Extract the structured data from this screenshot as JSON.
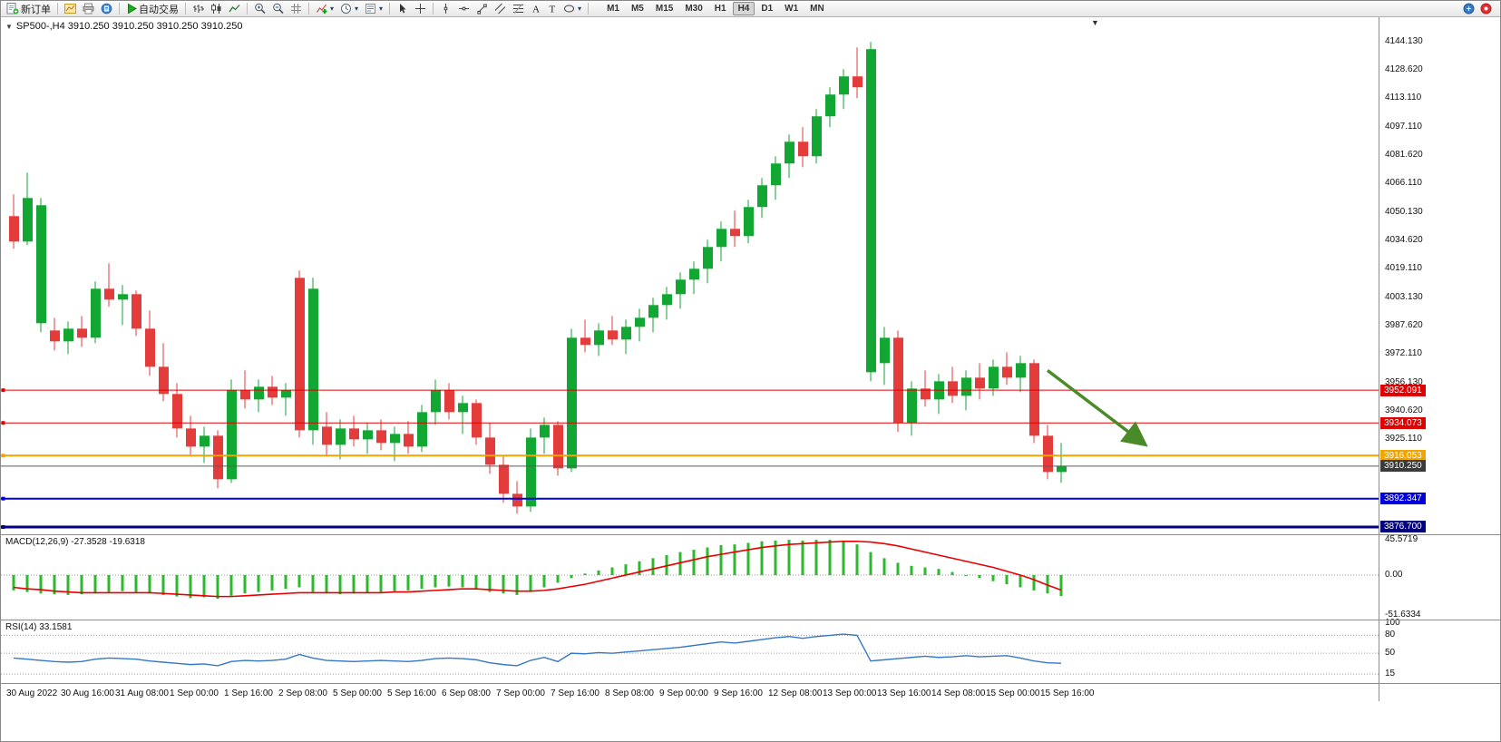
{
  "toolbar": {
    "groups": [
      [
        {
          "name": "new-order-button",
          "icon": "new-order",
          "label": "新订单"
        }
      ],
      [
        {
          "name": "chart-window-button",
          "icon": "chart-window"
        },
        {
          "name": "print-button",
          "icon": "printer"
        },
        {
          "name": "preview-button",
          "icon": "preview"
        }
      ],
      [
        {
          "name": "autotrading-button",
          "icon": "play",
          "label": "自动交易"
        }
      ],
      [
        {
          "name": "bar-chart-button",
          "icon": "bars"
        },
        {
          "name": "candlestick-chart-button",
          "icon": "candles"
        },
        {
          "name": "line-chart-button",
          "icon": "linechart"
        }
      ],
      [
        {
          "name": "zoom-in-button",
          "icon": "zoom-in"
        },
        {
          "name": "zoom-out-button",
          "icon": "zoom-out"
        },
        {
          "name": "tile-windows-button",
          "icon": "grid"
        }
      ],
      [
        {
          "name": "indicators-button",
          "icon": "indicator-add",
          "dropdown": true
        },
        {
          "name": "periods-button",
          "icon": "clock",
          "dropdown": true
        },
        {
          "name": "templates-button",
          "icon": "template",
          "dropdown": true
        }
      ],
      [
        {
          "name": "cursor-button",
          "icon": "cursor"
        },
        {
          "name": "crosshair-button",
          "icon": "crosshair"
        }
      ],
      [
        {
          "name": "vertical-line-button",
          "icon": "vline"
        },
        {
          "name": "horizontal-line-button",
          "icon": "hline"
        },
        {
          "name": "trendline-button",
          "icon": "trendline"
        },
        {
          "name": "channel-button",
          "icon": "channel"
        },
        {
          "name": "fibonacci-button",
          "icon": "fibonacci"
        },
        {
          "name": "text-button",
          "icon": "text"
        },
        {
          "name": "label-button",
          "icon": "label"
        },
        {
          "name": "shapes-button",
          "icon": "shapes",
          "dropdown": true
        }
      ]
    ],
    "timeframes": {
      "items": [
        "M1",
        "M5",
        "M15",
        "M30",
        "H1",
        "H4",
        "D1",
        "W1",
        "MN"
      ],
      "active": "H4"
    },
    "right_icons": [
      {
        "name": "community-button",
        "icon": "blue-badge"
      },
      {
        "name": "alerts-button",
        "icon": "red-badge"
      }
    ]
  },
  "chart_data": {
    "type": "candlestick",
    "symbol": "SP500-",
    "timeframe": "H4",
    "header": "SP500-,H4 3910.250 3910.250 3910.250 3910.250",
    "price_axis": {
      "range": [
        3872.7,
        4157.6
      ],
      "labels": [
        "4144.130",
        "4128.620",
        "4113.110",
        "4097.110",
        "4081.620",
        "4066.110",
        "4050.130",
        "4034.620",
        "4019.110",
        "4003.130",
        "3987.620",
        "3972.110",
        "3956.130",
        "3940.620",
        "3925.110"
      ]
    },
    "candles": [
      [
        4048,
        4060,
        4030,
        4034
      ],
      [
        4034,
        4072,
        4032,
        4058
      ],
      [
        3989,
        4058,
        3984,
        4054
      ],
      [
        3985,
        3992,
        3974,
        3979
      ],
      [
        3979,
        3990,
        3972,
        3986
      ],
      [
        3986,
        3993,
        3976,
        3981
      ],
      [
        3981,
        4012,
        3978,
        4008
      ],
      [
        4008,
        4022,
        3998,
        4002
      ],
      [
        4002,
        4010,
        3988,
        4005
      ],
      [
        4005,
        4007,
        3982,
        3986
      ],
      [
        3986,
        3996,
        3960,
        3965
      ],
      [
        3965,
        3978,
        3946,
        3950
      ],
      [
        3950,
        3956,
        3926,
        3931
      ],
      [
        3931,
        3938,
        3916,
        3921
      ],
      [
        3921,
        3932,
        3912,
        3927
      ],
      [
        3927,
        3930,
        3898,
        3903
      ],
      [
        3903,
        3958,
        3901,
        3952
      ],
      [
        3952,
        3963,
        3942,
        3947
      ],
      [
        3947,
        3958,
        3940,
        3954
      ],
      [
        3954,
        3960,
        3944,
        3948
      ],
      [
        3948,
        3956,
        3938,
        3952
      ],
      [
        4014,
        4018,
        3926,
        3930
      ],
      [
        3930,
        4014,
        3922,
        4008
      ],
      [
        3932,
        3940,
        3916,
        3922
      ],
      [
        3922,
        3936,
        3914,
        3931
      ],
      [
        3931,
        3938,
        3921,
        3925
      ],
      [
        3925,
        3934,
        3917,
        3930
      ],
      [
        3930,
        3936,
        3919,
        3923
      ],
      [
        3923,
        3932,
        3913,
        3928
      ],
      [
        3928,
        3935,
        3917,
        3921
      ],
      [
        3921,
        3944,
        3918,
        3940
      ],
      [
        3940,
        3958,
        3933,
        3952
      ],
      [
        3952,
        3956,
        3936,
        3940
      ],
      [
        3940,
        3949,
        3928,
        3945
      ],
      [
        3945,
        3947,
        3922,
        3926
      ],
      [
        3926,
        3934,
        3906,
        3911
      ],
      [
        3911,
        3916,
        3890,
        3895
      ],
      [
        3895,
        3902,
        3884,
        3888
      ],
      [
        3888,
        3931,
        3885,
        3926
      ],
      [
        3926,
        3937,
        3917,
        3933
      ],
      [
        3933,
        3935,
        3905,
        3909
      ],
      [
        3909,
        3986,
        3907,
        3981
      ],
      [
        3981,
        3991,
        3973,
        3977
      ],
      [
        3977,
        3989,
        3971,
        3985
      ],
      [
        3985,
        3993,
        3977,
        3980
      ],
      [
        3980,
        3991,
        3972,
        3987
      ],
      [
        3987,
        3997,
        3979,
        3992
      ],
      [
        3992,
        4003,
        3984,
        3999
      ],
      [
        3999,
        4009,
        3991,
        4005
      ],
      [
        4005,
        4017,
        3997,
        4013
      ],
      [
        4013,
        4023,
        4005,
        4019
      ],
      [
        4019,
        4035,
        4011,
        4031
      ],
      [
        4031,
        4045,
        4023,
        4041
      ],
      [
        4041,
        4051,
        4031,
        4037
      ],
      [
        4037,
        4057,
        4033,
        4053
      ],
      [
        4053,
        4069,
        4047,
        4065
      ],
      [
        4065,
        4081,
        4057,
        4077
      ],
      [
        4077,
        4093,
        4069,
        4089
      ],
      [
        4089,
        4097,
        4075,
        4081
      ],
      [
        4081,
        4107,
        4077,
        4103
      ],
      [
        4103,
        4119,
        4097,
        4115
      ],
      [
        4115,
        4129,
        4107,
        4125
      ],
      [
        4125,
        4141,
        4113,
        4119
      ],
      [
        3962,
        4144,
        3957,
        4140
      ],
      [
        3967,
        3987,
        3955,
        3981
      ],
      [
        3981,
        3985,
        3929,
        3934
      ],
      [
        3934,
        3957,
        3927,
        3953
      ],
      [
        3953,
        3963,
        3943,
        3947
      ],
      [
        3947,
        3961,
        3939,
        3957
      ],
      [
        3957,
        3965,
        3945,
        3949
      ],
      [
        3949,
        3963,
        3941,
        3959
      ],
      [
        3959,
        3967,
        3947,
        3953
      ],
      [
        3953,
        3969,
        3949,
        3965
      ],
      [
        3965,
        3973,
        3955,
        3959
      ],
      [
        3959,
        3971,
        3951,
        3967
      ],
      [
        3967,
        3969,
        3923,
        3927
      ],
      [
        3927,
        3933,
        3903,
        3907
      ],
      [
        3907,
        3923,
        3901,
        3910.25
      ]
    ],
    "time_labels": [
      {
        "i": 0,
        "t": "30 Aug 2022"
      },
      {
        "i": 4,
        "t": "30 Aug 16:00"
      },
      {
        "i": 8,
        "t": "31 Aug 08:00"
      },
      {
        "i": 12,
        "t": "1 Sep 00:00"
      },
      {
        "i": 16,
        "t": "1 Sep 16:00"
      },
      {
        "i": 20,
        "t": "2 Sep 08:00"
      },
      {
        "i": 24,
        "t": "5 Sep 00:00"
      },
      {
        "i": 28,
        "t": "5 Sep 16:00"
      },
      {
        "i": 32,
        "t": "6 Sep 08:00"
      },
      {
        "i": 36,
        "t": "7 Sep 00:00"
      },
      {
        "i": 40,
        "t": "7 Sep 16:00"
      },
      {
        "i": 44,
        "t": "8 Sep 08:00"
      },
      {
        "i": 48,
        "t": "9 Sep 00:00"
      },
      {
        "i": 52,
        "t": "9 Sep 16:00"
      },
      {
        "i": 56,
        "t": "12 Sep 08:00"
      },
      {
        "i": 60,
        "t": "13 Sep 00:00"
      },
      {
        "i": 64,
        "t": "13 Sep 16:00"
      },
      {
        "i": 68,
        "t": "14 Sep 08:00"
      },
      {
        "i": 72,
        "t": "15 Sep 00:00"
      },
      {
        "i": 76,
        "t": "15 Sep 16:00"
      }
    ],
    "levels": [
      {
        "price": 3952.091,
        "label": "3952.091",
        "color": "#df0000",
        "width": 1
      },
      {
        "price": 3934.073,
        "label": "3934.073",
        "color": "#df0000",
        "width": 1
      },
      {
        "price": 3916.053,
        "label": "3916.053",
        "color": "#f0a500",
        "width": 2
      },
      {
        "price": 3892.347,
        "label": "3892.347",
        "color": "#0000df",
        "width": 2
      },
      {
        "price": 3876.7,
        "label": "3876.700",
        "color": "#000080",
        "width": 3
      }
    ],
    "current_price": {
      "label": "3910.250",
      "price": 3910.25,
      "line_color": "#5a5a5a",
      "bg": "#3a3a3a"
    },
    "arrow": {
      "from_index": 76,
      "from_price": 3963,
      "to_index": 83.2,
      "to_price": 3922,
      "color": "#4a8a28"
    },
    "macd": {
      "label": "MACD(12,26,9)",
      "values_text": "-27.3528 -19.6318",
      "axis_labels": [
        "45.5719",
        "0.00",
        "-51.6334"
      ],
      "range": [
        52,
        -58
      ],
      "colors": {
        "histogram": "#2db82d",
        "signal": "#e80000"
      },
      "histogram": [
        -20,
        -22,
        -24,
        -25,
        -26,
        -25,
        -24,
        -22,
        -21,
        -22,
        -24,
        -26,
        -28,
        -30,
        -29,
        -31,
        -27,
        -24,
        -22,
        -20,
        -18,
        -16,
        -22,
        -24,
        -25,
        -24,
        -23,
        -22,
        -21,
        -20,
        -18,
        -16,
        -15,
        -16,
        -18,
        -22,
        -24,
        -26,
        -22,
        -16,
        -10,
        -4,
        2,
        6,
        10,
        14,
        18,
        22,
        26,
        30,
        33,
        36,
        39,
        40,
        42,
        44,
        45,
        46,
        45,
        46,
        46,
        45,
        40,
        30,
        22,
        16,
        12,
        10,
        8,
        4,
        0,
        -4,
        -8,
        -12,
        -16,
        -20,
        -24,
        -27.35
      ],
      "signal": [
        -16,
        -18,
        -19,
        -21,
        -22,
        -23,
        -23,
        -23,
        -23,
        -23,
        -23,
        -24,
        -25,
        -26,
        -27,
        -28,
        -28,
        -27,
        -26,
        -25,
        -24,
        -23,
        -23,
        -23,
        -23,
        -23,
        -23,
        -23,
        -22,
        -22,
        -21,
        -20,
        -19,
        -18,
        -18,
        -19,
        -20,
        -21,
        -21,
        -20,
        -18,
        -15,
        -12,
        -8,
        -4,
        0,
        4,
        8,
        12,
        16,
        20,
        24,
        27,
        30,
        33,
        36,
        38,
        40,
        41,
        42,
        43,
        44,
        44,
        43,
        41,
        38,
        34,
        30,
        26,
        22,
        18,
        14,
        10,
        5,
        0,
        -6,
        -13,
        -19.63
      ]
    },
    "rsi": {
      "label": "RSI(14)",
      "value_text": "33.1581",
      "axis_labels": [
        "100",
        "80",
        "50",
        "15"
      ],
      "levels": [
        80,
        50,
        15
      ],
      "range": [
        105,
        0
      ],
      "color": "#3577c8",
      "values": [
        42,
        40,
        38,
        36,
        35,
        36,
        40,
        42,
        41,
        40,
        37,
        35,
        33,
        31,
        32,
        29,
        36,
        38,
        37,
        38,
        40,
        48,
        42,
        38,
        37,
        36,
        37,
        38,
        37,
        36,
        38,
        41,
        42,
        41,
        39,
        34,
        31,
        29,
        38,
        43,
        36,
        50,
        49,
        51,
        50,
        52,
        54,
        56,
        58,
        60,
        63,
        66,
        69,
        67,
        70,
        73,
        76,
        78,
        75,
        78,
        80,
        82,
        80,
        37,
        39,
        41,
        43,
        45,
        43,
        44,
        46,
        44,
        45,
        46,
        42,
        37,
        34,
        33.16
      ]
    },
    "colors": {
      "bull": "#12a633",
      "bear": "#e43b3b",
      "background": "#ffffff"
    }
  }
}
